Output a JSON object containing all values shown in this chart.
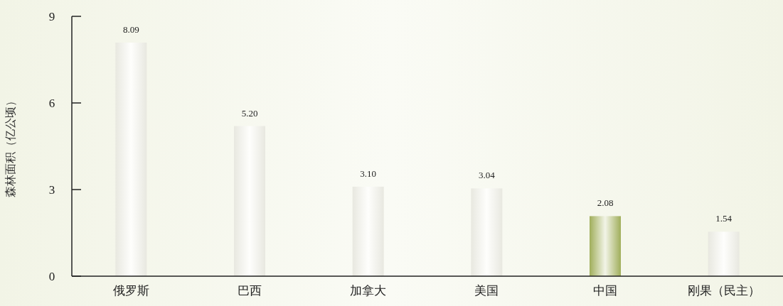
{
  "chart_data": {
    "type": "bar",
    "ylabel": "森林面积（亿公顷）",
    "categories": [
      "俄罗斯",
      "巴西",
      "加拿大",
      "美国",
      "中国",
      "刚果（民主）"
    ],
    "values": [
      8.09,
      5.2,
      3.1,
      3.04,
      2.08,
      1.54
    ],
    "value_labels": [
      "8.09",
      "5.20",
      "3.10",
      "3.04",
      "2.08",
      "1.54"
    ],
    "colors": [
      "#f5f5ec",
      "#f5f5ec",
      "#f5f5ec",
      "#f5f5ec",
      "#a9b860",
      "#f5f5ec"
    ],
    "ylim": [
      0,
      9
    ],
    "yticks": [
      0,
      3,
      6,
      9
    ],
    "grid": false
  }
}
